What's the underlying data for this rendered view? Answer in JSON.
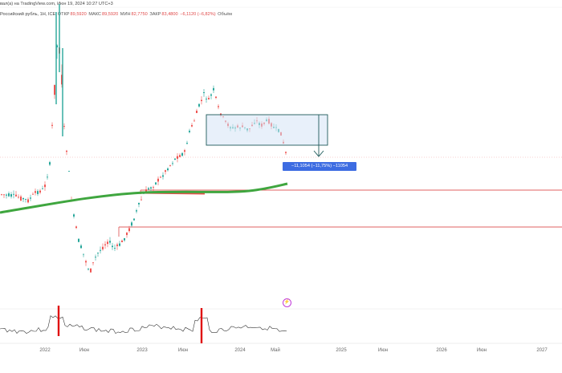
{
  "header": {
    "published": "вал(а) на TradingView.com, Июн 19, 2024 10:27 UTC+3",
    "symbol": "Российский рубль, 1Н, ICE",
    "open_label": "ОТКР",
    "open_value": "89,5920",
    "high_label": "МАКС",
    "high_value": "89,5920",
    "low_label": "МИН",
    "low_value": "82,7750",
    "close_label": "ЗАКР",
    "close_value": "83,4800",
    "change": "−6,1120 (−6,82%)",
    "volume_label": "Объём"
  },
  "measure_label": "−11,1054 (−11,75%) −11054",
  "time_axis": [
    "2022",
    "Июн",
    "2023",
    "Июн",
    "2024",
    "Май",
    "2025",
    "Июн",
    "2026",
    "Июн",
    "2027"
  ],
  "colors": {
    "up": "#26a69a",
    "down": "#ef5350",
    "ma_line": "#3fa63f",
    "box_fill": "#d6e4f5",
    "box_border": "#1e5a5a",
    "measure_bg": "#3d6ce2",
    "level_line": "#e06060"
  },
  "icons": {
    "alert": "lightning-circle-icon"
  }
}
